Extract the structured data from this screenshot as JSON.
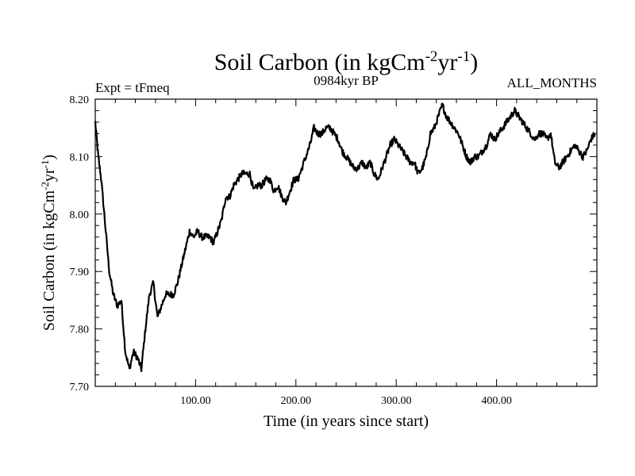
{
  "chart_data": {
    "type": "line",
    "title": {
      "parts": [
        {
          "text": "Soil Carbon (in kgCm",
          "sup": false
        },
        {
          "text": "-2",
          "sup": true
        },
        {
          "text": "yr",
          "sup": false
        },
        {
          "text": "-1",
          "sup": true
        },
        {
          "text": ")",
          "sup": false
        }
      ]
    },
    "header_left": "Expt = tFmeq",
    "header_center": "0984kyr BP",
    "header_right": "ALL_MONTHS",
    "xlabel": "Time (in years since start)",
    "ylabel": {
      "parts": [
        {
          "text": "Soil Carbon (in kgCm",
          "sup": false
        },
        {
          "text": "-2",
          "sup": true
        },
        {
          "text": "yr",
          "sup": false
        },
        {
          "text": "-1",
          "sup": true
        },
        {
          "text": ")",
          "sup": false
        }
      ]
    },
    "xlim": [
      0,
      500
    ],
    "ylim": [
      7.7,
      8.2
    ],
    "x_ticks": [
      100,
      200,
      300,
      400
    ],
    "x_tick_labels": [
      "100.00",
      "200.00",
      "300.00",
      "400.00"
    ],
    "y_ticks": [
      7.7,
      7.8,
      7.9,
      8.0,
      8.1,
      8.2
    ],
    "y_tick_labels": [
      "7.70",
      "7.80",
      "7.90",
      "8.00",
      "8.10",
      "8.20"
    ],
    "grid": false,
    "line_color": "#000000",
    "series": [
      {
        "x": [
          0,
          3,
          6,
          10,
          14,
          18,
          22,
          26,
          30,
          34,
          38,
          42,
          46,
          50,
          54,
          58,
          62,
          66,
          70,
          74,
          78,
          82,
          86,
          90,
          94,
          98,
          102,
          106,
          110,
          114,
          118,
          122,
          126,
          130,
          134,
          138,
          142,
          146,
          150,
          154,
          158,
          162,
          166,
          170,
          174,
          178,
          182,
          186,
          190,
          194,
          198,
          202,
          206,
          210,
          214,
          218,
          222,
          226,
          230,
          234,
          238,
          242,
          246,
          250,
          254,
          258,
          262,
          266,
          270,
          274,
          278,
          282,
          286,
          290,
          294,
          298,
          302,
          306,
          310,
          314,
          318,
          322,
          326,
          330,
          334,
          338,
          342,
          346,
          350,
          354,
          358,
          362,
          366,
          370,
          374,
          378,
          382,
          386,
          390,
          394,
          398,
          402,
          406,
          410,
          414,
          418,
          422,
          426,
          430,
          434,
          438,
          442,
          446,
          450,
          454,
          458,
          462,
          466,
          470,
          474,
          478,
          482,
          486,
          490,
          494,
          498
        ],
        "y": [
          8.16,
          8.1,
          8.06,
          7.98,
          7.9,
          7.86,
          7.84,
          7.85,
          7.76,
          7.73,
          7.76,
          7.75,
          7.73,
          7.8,
          7.86,
          7.88,
          7.82,
          7.84,
          7.86,
          7.86,
          7.86,
          7.88,
          7.91,
          7.94,
          7.97,
          7.96,
          7.97,
          7.96,
          7.96,
          7.96,
          7.95,
          7.97,
          7.99,
          8.03,
          8.03,
          8.05,
          8.06,
          8.07,
          8.07,
          8.07,
          8.04,
          8.05,
          8.05,
          8.06,
          8.06,
          8.04,
          8.05,
          8.03,
          8.02,
          8.04,
          8.06,
          8.06,
          8.08,
          8.1,
          8.12,
          8.15,
          8.14,
          8.14,
          8.15,
          8.15,
          8.14,
          8.13,
          8.11,
          8.1,
          8.09,
          8.08,
          8.08,
          8.09,
          8.08,
          8.09,
          8.07,
          8.06,
          8.08,
          8.1,
          8.12,
          8.13,
          8.12,
          8.11,
          8.1,
          8.09,
          8.09,
          8.07,
          8.08,
          8.1,
          8.14,
          8.15,
          8.17,
          8.19,
          8.17,
          8.16,
          8.15,
          8.14,
          8.12,
          8.1,
          8.09,
          8.1,
          8.1,
          8.11,
          8.12,
          8.14,
          8.13,
          8.14,
          8.15,
          8.16,
          8.17,
          8.18,
          8.17,
          8.16,
          8.15,
          8.14,
          8.13,
          8.14,
          8.14,
          8.13,
          8.14,
          8.09,
          8.08,
          8.09,
          8.1,
          8.11,
          8.12,
          8.11,
          8.1,
          8.11,
          8.13,
          8.14
        ]
      }
    ]
  }
}
